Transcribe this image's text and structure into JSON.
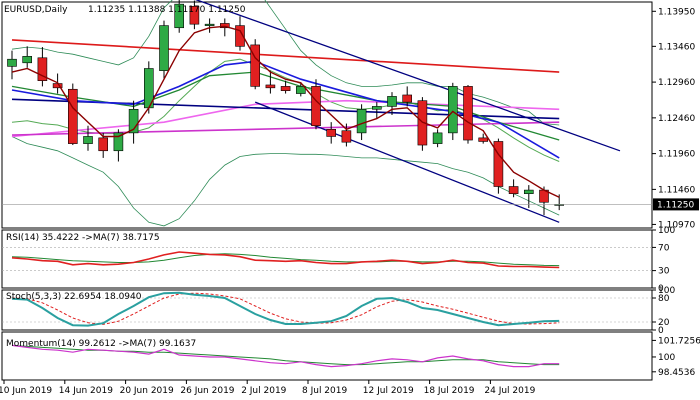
{
  "chart_data": {
    "type": "candlestick",
    "symbol_line": "EURUSD,Daily",
    "ohlc_line": "1.11235 1.11388 1.11170 1.11250",
    "last_price_tag": "1.11250",
    "x_tick_labels": [
      "10 Jun 2019",
      "14 Jun 2019",
      "20 Jun 2019",
      "26 Jun 2019",
      "2 Jul 2019",
      "8 Jul 2019",
      "12 Jul 2019",
      "18 Jul 2019",
      "24 Jul 2019"
    ],
    "main_ticks": [
      "1.13950",
      "1.13460",
      "1.12960",
      "1.12460",
      "1.11960",
      "1.11460",
      "1.10970"
    ],
    "ylim": [
      1.1092,
      1.1408
    ],
    "colors": {
      "bull": "#2eaa45",
      "bear": "#e02020",
      "ema": "#8b0000",
      "bb": "#2e8b57",
      "channel": "#000080",
      "ma_red": "#dd1a1a",
      "ma_pink": "#ee66ee",
      "ma_magenta": "#cc33cc",
      "ma_blue": "#1a1add",
      "ma_green": "#228833",
      "osc": "#2aa0a0"
    },
    "candles": [
      {
        "o": 1.1318,
        "h": 1.134,
        "l": 1.13,
        "c": 1.1328
      },
      {
        "o": 1.1323,
        "h": 1.1346,
        "l": 1.1316,
        "c": 1.1332
      },
      {
        "o": 1.133,
        "h": 1.1345,
        "l": 1.129,
        "c": 1.1298
      },
      {
        "o": 1.1294,
        "h": 1.1308,
        "l": 1.128,
        "c": 1.1288
      },
      {
        "o": 1.1286,
        "h": 1.1294,
        "l": 1.1208,
        "c": 1.121
      },
      {
        "o": 1.121,
        "h": 1.1235,
        "l": 1.12,
        "c": 1.122
      },
      {
        "o": 1.1218,
        "h": 1.1225,
        "l": 1.119,
        "c": 1.12
      },
      {
        "o": 1.12,
        "h": 1.123,
        "l": 1.1185,
        "c": 1.1225
      },
      {
        "o": 1.1225,
        "h": 1.127,
        "l": 1.121,
        "c": 1.1258
      },
      {
        "o": 1.126,
        "h": 1.1325,
        "l": 1.1252,
        "c": 1.1315
      },
      {
        "o": 1.1312,
        "h": 1.1382,
        "l": 1.13,
        "c": 1.1375
      },
      {
        "o": 1.1372,
        "h": 1.1412,
        "l": 1.1365,
        "c": 1.1405
      },
      {
        "o": 1.1402,
        "h": 1.141,
        "l": 1.137,
        "c": 1.1377
      },
      {
        "o": 1.1375,
        "h": 1.1385,
        "l": 1.1365,
        "c": 1.1377
      },
      {
        "o": 1.1378,
        "h": 1.1385,
        "l": 1.136,
        "c": 1.1372
      },
      {
        "o": 1.1375,
        "h": 1.1388,
        "l": 1.134,
        "c": 1.1346
      },
      {
        "o": 1.1348,
        "h": 1.1356,
        "l": 1.1286,
        "c": 1.129
      },
      {
        "o": 1.1292,
        "h": 1.1312,
        "l": 1.128,
        "c": 1.1288
      },
      {
        "o": 1.129,
        "h": 1.1298,
        "l": 1.128,
        "c": 1.1284
      },
      {
        "o": 1.128,
        "h": 1.1294,
        "l": 1.1276,
        "c": 1.129
      },
      {
        "o": 1.129,
        "h": 1.13,
        "l": 1.123,
        "c": 1.1235
      },
      {
        "o": 1.123,
        "h": 1.124,
        "l": 1.121,
        "c": 1.122
      },
      {
        "o": 1.1228,
        "h": 1.1238,
        "l": 1.1206,
        "c": 1.1212
      },
      {
        "o": 1.1225,
        "h": 1.1265,
        "l": 1.1215,
        "c": 1.1258
      },
      {
        "o": 1.1258,
        "h": 1.1268,
        "l": 1.1245,
        "c": 1.1262
      },
      {
        "o": 1.1262,
        "h": 1.1282,
        "l": 1.125,
        "c": 1.1276
      },
      {
        "o": 1.1278,
        "h": 1.129,
        "l": 1.1262,
        "c": 1.1268
      },
      {
        "o": 1.127,
        "h": 1.1275,
        "l": 1.12,
        "c": 1.1208
      },
      {
        "o": 1.121,
        "h": 1.123,
        "l": 1.1205,
        "c": 1.1225
      },
      {
        "o": 1.1225,
        "h": 1.1295,
        "l": 1.1215,
        "c": 1.129
      },
      {
        "o": 1.129,
        "h": 1.1292,
        "l": 1.121,
        "c": 1.1215
      },
      {
        "o": 1.1218,
        "h": 1.1224,
        "l": 1.121,
        "c": 1.1213
      },
      {
        "o": 1.1213,
        "h": 1.1217,
        "l": 1.114,
        "c": 1.115
      },
      {
        "o": 1.115,
        "h": 1.116,
        "l": 1.1135,
        "c": 1.114
      },
      {
        "o": 1.114,
        "h": 1.1152,
        "l": 1.112,
        "c": 1.1145
      },
      {
        "o": 1.1145,
        "h": 1.115,
        "l": 1.111,
        "c": 1.1128
      },
      {
        "o": 1.1124,
        "h": 1.1139,
        "l": 1.1117,
        "c": 1.1125
      }
    ],
    "ema": [
      1.131,
      1.1315,
      1.1305,
      1.1295,
      1.126,
      1.124,
      1.122,
      1.122,
      1.123,
      1.126,
      1.13,
      1.134,
      1.1365,
      1.1372,
      1.1374,
      1.1368,
      1.133,
      1.131,
      1.13,
      1.1295,
      1.127,
      1.125,
      1.123,
      1.1238,
      1.1245,
      1.1258,
      1.126,
      1.124,
      1.1232,
      1.1255,
      1.124,
      1.1228,
      1.1195,
      1.117,
      1.1158,
      1.1145,
      1.1135
    ],
    "bb_upper": [
      1.1342,
      1.1345,
      1.1343,
      1.1338,
      1.1335,
      1.133,
      1.1325,
      1.132,
      1.133,
      1.136,
      1.14,
      1.142,
      1.144,
      1.145,
      1.1455,
      1.145,
      1.143,
      1.14,
      1.137,
      1.134,
      1.132,
      1.1305,
      1.1295,
      1.129,
      1.129,
      1.1292,
      1.1295,
      1.1295,
      1.129,
      1.129,
      1.128,
      1.1275,
      1.1268,
      1.126,
      1.1255,
      1.1238,
      1.1236
    ],
    "bb_lower": [
      1.122,
      1.121,
      1.1205,
      1.12,
      1.119,
      1.118,
      1.117,
      1.115,
      1.112,
      1.11,
      1.1095,
      1.1105,
      1.113,
      1.116,
      1.118,
      1.1192,
      1.1195,
      1.1196,
      1.1196,
      1.1195,
      1.1195,
      1.1194,
      1.1192,
      1.119,
      1.119,
      1.1188,
      1.1186,
      1.1184,
      1.1182,
      1.1175,
      1.117,
      1.1162,
      1.115,
      1.114,
      1.113,
      1.112,
      1.111
    ],
    "bb_mid": [
      1.124,
      1.1242,
      1.1238,
      1.1236,
      1.123,
      1.1226,
      1.1224,
      1.1224,
      1.1226,
      1.1232,
      1.1248,
      1.127,
      1.129,
      1.131,
      1.1325,
      1.1328,
      1.132,
      1.1312,
      1.1302,
      1.1294,
      1.128,
      1.1268,
      1.126,
      1.1258,
      1.126,
      1.1264,
      1.1268,
      1.1262,
      1.1256,
      1.1258,
      1.125,
      1.1244,
      1.1232,
      1.1218,
      1.1205,
      1.1194,
      1.1185
    ],
    "ma_red": [
      [
        0,
        1.1355
      ],
      [
        36,
        1.131
      ]
    ],
    "ma_pink": [
      [
        0,
        1.122
      ],
      [
        10,
        1.124
      ],
      [
        16,
        1.1265
      ],
      [
        22,
        1.127
      ],
      [
        36,
        1.1258
      ]
    ],
    "ma_magenta": [
      [
        0,
        1.1222
      ],
      [
        36,
        1.124
      ]
    ],
    "ma_navy_flat": [
      [
        0,
        1.1272
      ],
      [
        36,
        1.1245
      ]
    ],
    "ma_blue": [
      [
        0,
        1.1285
      ],
      [
        4,
        1.127
      ],
      [
        8,
        1.1265
      ],
      [
        11,
        1.129
      ],
      [
        14,
        1.132
      ],
      [
        16,
        1.1325
      ],
      [
        19,
        1.13
      ],
      [
        24,
        1.127
      ],
      [
        29,
        1.1255
      ],
      [
        32,
        1.124
      ],
      [
        36,
        1.119
      ]
    ],
    "ma_green": [
      [
        0,
        1.129
      ],
      [
        4,
        1.1275
      ],
      [
        8,
        1.1262
      ],
      [
        11,
        1.1285
      ],
      [
        13,
        1.1305
      ],
      [
        16,
        1.131
      ],
      [
        19,
        1.129
      ],
      [
        24,
        1.127
      ],
      [
        29,
        1.1262
      ],
      [
        32,
        1.124
      ],
      [
        36,
        1.1215
      ]
    ],
    "channel_upper": [
      [
        12,
        1.1412
      ],
      [
        40,
        1.12
      ]
    ],
    "channel_lower": [
      [
        16,
        1.1268
      ],
      [
        36,
        1.11
      ]
    ],
    "rsi": {
      "label": "RSI(14) 35.4222 ->MA(7) 38.7175",
      "ylim": [
        0,
        100
      ],
      "ticks": [
        "100",
        "70",
        "30",
        "0"
      ],
      "levels": [
        70,
        30
      ],
      "rsi": [
        52,
        50,
        47,
        46,
        40,
        42,
        40,
        41,
        44,
        50,
        57,
        62,
        60,
        58,
        57,
        54,
        48,
        47,
        46,
        47,
        44,
        42,
        42,
        45,
        46,
        48,
        46,
        42,
        44,
        48,
        44,
        43,
        38,
        37,
        37,
        36,
        35.4
      ],
      "ma": [
        54,
        53,
        51,
        49,
        47,
        46,
        45,
        44,
        44,
        45,
        48,
        52,
        56,
        58,
        59,
        58,
        56,
        53,
        51,
        49,
        48,
        46,
        45,
        45,
        45,
        46,
        46,
        45,
        45,
        46,
        46,
        45,
        43,
        41,
        40,
        39,
        38.7
      ]
    },
    "stoch": {
      "label": "Stoch(5,3,3) 22.6954 18.0940",
      "ylim": [
        0,
        100
      ],
      "ticks": [
        "100",
        "80",
        "20",
        "0"
      ],
      "levels": [
        80,
        20
      ],
      "k": [
        78,
        76,
        55,
        30,
        12,
        11,
        17,
        40,
        60,
        82,
        92,
        93,
        88,
        85,
        80,
        60,
        40,
        25,
        15,
        15,
        18,
        22,
        35,
        60,
        78,
        80,
        70,
        55,
        50,
        40,
        30,
        20,
        12,
        15,
        18,
        22,
        22.7
      ],
      "d": [
        80,
        78,
        68,
        50,
        30,
        18,
        14,
        22,
        40,
        60,
        80,
        90,
        92,
        90,
        85,
        78,
        60,
        42,
        28,
        20,
        17,
        18,
        25,
        38,
        58,
        72,
        76,
        70,
        60,
        52,
        42,
        32,
        22,
        16,
        15,
        16,
        18.1
      ]
    },
    "momentum": {
      "label": "Momentum(14) 99.2612 ->MA(7) 99.1637",
      "ylim": [
        97.6,
        102.6
      ],
      "ticks": [
        "101.7256",
        "100",
        "98.4536"
      ],
      "mom": [
        101.2,
        101.0,
        100.8,
        100.7,
        100.5,
        100.8,
        100.7,
        100.6,
        100.5,
        100.3,
        100.8,
        100.2,
        100.1,
        100.0,
        100.0,
        99.8,
        99.6,
        99.4,
        99.3,
        99.5,
        99.2,
        99.0,
        99.1,
        99.3,
        99.6,
        99.8,
        99.7,
        99.5,
        99.9,
        100.1,
        99.8,
        99.6,
        99.2,
        99.0,
        99.0,
        99.3,
        99.3
      ],
      "ma": [
        101.2,
        101.1,
        101.0,
        100.9,
        100.8,
        100.7,
        100.7,
        100.6,
        100.6,
        100.5,
        100.5,
        100.4,
        100.3,
        100.2,
        100.1,
        100.0,
        99.9,
        99.8,
        99.6,
        99.5,
        99.4,
        99.3,
        99.2,
        99.2,
        99.3,
        99.4,
        99.5,
        99.5,
        99.6,
        99.7,
        99.7,
        99.7,
        99.5,
        99.4,
        99.3,
        99.2,
        99.2
      ]
    }
  }
}
